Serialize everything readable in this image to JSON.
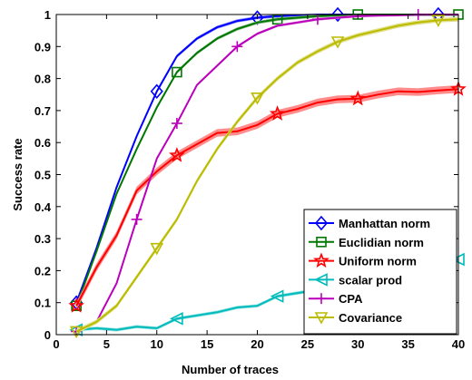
{
  "chart_data": {
    "type": "line",
    "xlabel": "Number of traces",
    "ylabel": "Success rate",
    "xlim": [
      0,
      40
    ],
    "ylim": [
      0,
      1
    ],
    "xticks": [
      "0",
      "5",
      "10",
      "15",
      "20",
      "25",
      "30",
      "35",
      "40"
    ],
    "yticks": [
      "0",
      "0.1",
      "0.2",
      "0.3",
      "0.4",
      "0.5",
      "0.6",
      "0.7",
      "0.8",
      "0.9",
      "1"
    ],
    "legend_position": "bottom-right",
    "grid": false,
    "series": [
      {
        "name": "Manhattan norm",
        "color": "#0000ff",
        "marker": "diamond",
        "x": [
          2,
          4,
          6,
          8,
          10,
          12,
          14,
          16,
          18,
          20,
          22,
          24,
          26,
          28,
          30,
          32,
          34,
          36,
          38,
          40
        ],
        "y": [
          0.1,
          0.27,
          0.46,
          0.62,
          0.76,
          0.87,
          0.925,
          0.96,
          0.98,
          0.99,
          0.995,
          0.998,
          1.0,
          1.0,
          1.0,
          1.0,
          1.0,
          1.0,
          1.0,
          1.0
        ],
        "markers_x": [
          2,
          10,
          20,
          28,
          38
        ],
        "band": 0.005
      },
      {
        "name": "Euclidian norm",
        "color": "#007700",
        "marker": "square",
        "x": [
          2,
          4,
          6,
          8,
          10,
          12,
          14,
          16,
          18,
          20,
          22,
          24,
          26,
          28,
          30,
          32,
          34,
          36,
          38,
          40
        ],
        "y": [
          0.09,
          0.26,
          0.44,
          0.58,
          0.71,
          0.82,
          0.88,
          0.925,
          0.955,
          0.975,
          0.985,
          0.99,
          0.995,
          0.998,
          1.0,
          1.0,
          1.0,
          1.0,
          1.0,
          1.0
        ],
        "markers_x": [
          2,
          12,
          22,
          30,
          40
        ],
        "band": 0.005
      },
      {
        "name": "Uniform norm",
        "color": "#ff0000",
        "marker": "star",
        "x": [
          2,
          4,
          6,
          8,
          10,
          12,
          14,
          16,
          18,
          20,
          22,
          24,
          26,
          28,
          30,
          32,
          34,
          36,
          38,
          40
        ],
        "y": [
          0.09,
          0.21,
          0.31,
          0.45,
          0.51,
          0.56,
          0.595,
          0.63,
          0.635,
          0.655,
          0.69,
          0.705,
          0.725,
          0.735,
          0.737,
          0.75,
          0.76,
          0.758,
          0.763,
          0.767
        ],
        "markers_x": [
          2,
          12,
          22,
          30,
          40
        ],
        "band": 0.012
      },
      {
        "name": "scalar prod",
        "color": "#00bbbb",
        "marker": "triangle-left",
        "x": [
          2,
          4,
          6,
          8,
          10,
          12,
          14,
          16,
          18,
          20,
          22,
          24,
          26,
          28,
          30,
          32,
          34,
          36,
          38,
          40
        ],
        "y": [
          0.015,
          0.02,
          0.015,
          0.025,
          0.02,
          0.05,
          0.06,
          0.07,
          0.085,
          0.09,
          0.12,
          0.13,
          0.14,
          0.155,
          0.165,
          0.18,
          0.195,
          0.205,
          0.22,
          0.235
        ],
        "markers_x": [
          2,
          12,
          22,
          40
        ],
        "band": 0.005
      },
      {
        "name": "CPA",
        "color": "#bb00bb",
        "marker": "plus",
        "x": [
          2,
          4,
          6,
          8,
          10,
          12,
          14,
          16,
          18,
          20,
          22,
          24,
          26,
          28,
          30,
          32,
          34,
          36,
          38,
          40
        ],
        "y": [
          0.01,
          0.04,
          0.16,
          0.36,
          0.55,
          0.66,
          0.78,
          0.84,
          0.9,
          0.94,
          0.965,
          0.975,
          0.985,
          0.99,
          0.995,
          0.997,
          0.998,
          1.0,
          1.0,
          1.0
        ],
        "markers_x": [
          2,
          8,
          12,
          18,
          26,
          36
        ],
        "band": 0.004
      },
      {
        "name": "Covariance",
        "color": "#bbbb00",
        "marker": "triangle-down",
        "x": [
          2,
          4,
          6,
          8,
          10,
          12,
          14,
          16,
          18,
          20,
          22,
          24,
          26,
          28,
          30,
          32,
          34,
          36,
          38,
          40
        ],
        "y": [
          0.01,
          0.04,
          0.09,
          0.18,
          0.27,
          0.36,
          0.48,
          0.58,
          0.665,
          0.74,
          0.8,
          0.85,
          0.885,
          0.915,
          0.935,
          0.95,
          0.965,
          0.975,
          0.982,
          0.985
        ],
        "markers_x": [
          2,
          10,
          20,
          28,
          38
        ],
        "band": 0.007
      }
    ]
  }
}
